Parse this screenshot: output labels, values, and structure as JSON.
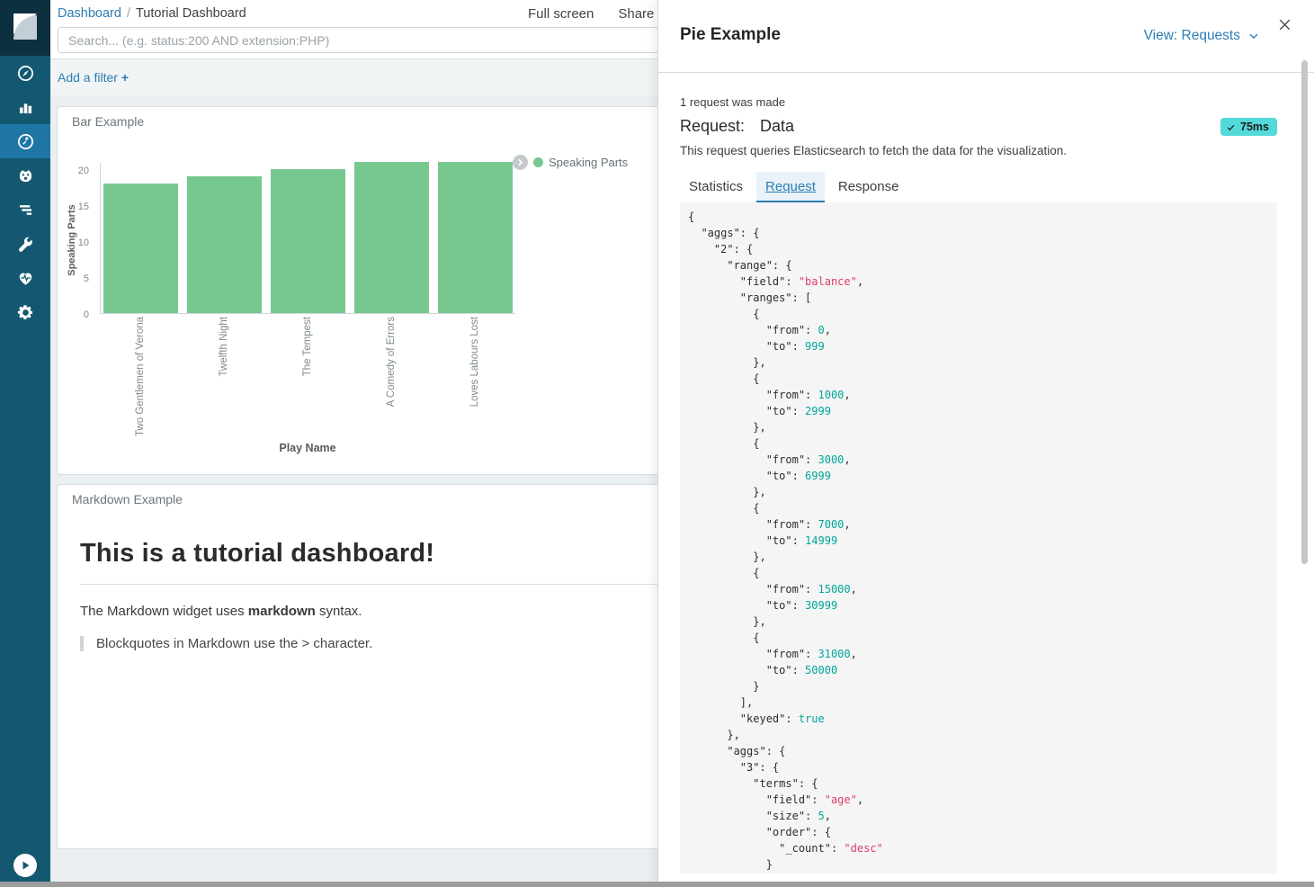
{
  "colors": {
    "accent_blue": "#2d7db3",
    "sidebar_bg": "#135870",
    "sidebar_active_bg": "#1e76a5",
    "bar_green": "#77c88f",
    "badge_teal": "#54d9d9",
    "code_string_pink": "#dd3e67",
    "code_number_teal": "#00a69b"
  },
  "sidebar": {
    "items": [
      {
        "name": "discover",
        "icon": "compass-icon"
      },
      {
        "name": "visualize",
        "icon": "bar-chart-icon"
      },
      {
        "name": "dashboard",
        "icon": "gauge-icon",
        "active": true
      },
      {
        "name": "timelion",
        "icon": "face-icon"
      },
      {
        "name": "logging",
        "icon": "lines-icon"
      },
      {
        "name": "dev-tools",
        "icon": "wrench-icon"
      },
      {
        "name": "monitoring",
        "icon": "heartbeat-icon"
      },
      {
        "name": "management",
        "icon": "gear-icon"
      }
    ],
    "collapse_icon": "play-circle-icon"
  },
  "topbar": {
    "breadcrumb": {
      "link": "Dashboard",
      "separator": "/",
      "current": "Tutorial Dashboard"
    },
    "actions": {
      "fullscreen": "Full screen",
      "share": "Share"
    },
    "search_placeholder": "Search... (e.g. status:200 AND extension:PHP)"
  },
  "filter_bar": {
    "add_filter": "Add a filter",
    "plus": "+"
  },
  "panels": {
    "bar": {
      "title": "Bar Example",
      "legend": {
        "label": "Speaking Parts",
        "color": "#77c88f"
      },
      "chart_data": {
        "type": "bar",
        "categories": [
          "Two Gentlemen of Verona",
          "Twelfth Night",
          "The Tempest",
          "A Comedy of Errors",
          "Loves Labours Lost"
        ],
        "values": [
          18,
          19,
          20,
          21,
          21
        ],
        "series_name": "Speaking Parts",
        "xlabel": "Play Name",
        "ylabel": "Speaking Parts",
        "ylim": [
          0,
          21
        ],
        "yticks": [
          0,
          5,
          10,
          15,
          20
        ],
        "grid": false,
        "legend_position": "right",
        "bar_color": "#77c88f"
      }
    },
    "markdown": {
      "title": "Markdown Example",
      "heading": "This is a tutorial dashboard!",
      "paragraph_prefix": "The Markdown widget uses ",
      "paragraph_bold": "markdown",
      "paragraph_suffix": " syntax.",
      "blockquote": "Blockquotes in Markdown use the > character."
    }
  },
  "flyout": {
    "title": "Pie Example",
    "view_menu": "View: Requests",
    "request_count": "1 request was made",
    "request_label": "Request:",
    "request_name": "Data",
    "duration_badge": "75ms",
    "description": "This request queries Elasticsearch to fetch the data for the visualization.",
    "tabs": [
      "Statistics",
      "Request",
      "Response"
    ],
    "active_tab": "Request",
    "code_lines": [
      [
        [
          "p",
          "{"
        ]
      ],
      [
        [
          "p",
          "  \"aggs\": {"
        ]
      ],
      [
        [
          "p",
          "    \"2\": {"
        ]
      ],
      [
        [
          "p",
          "      \"range\": {"
        ]
      ],
      [
        [
          "p",
          "        \"field\": "
        ],
        [
          "s",
          "\"balance\""
        ],
        [
          "p",
          ","
        ]
      ],
      [
        [
          "p",
          "        \"ranges\": ["
        ]
      ],
      [
        [
          "p",
          "          {"
        ]
      ],
      [
        [
          "p",
          "            \"from\": "
        ],
        [
          "n",
          "0"
        ],
        [
          "p",
          ","
        ]
      ],
      [
        [
          "p",
          "            \"to\": "
        ],
        [
          "n",
          "999"
        ]
      ],
      [
        [
          "p",
          "          },"
        ]
      ],
      [
        [
          "p",
          "          {"
        ]
      ],
      [
        [
          "p",
          "            \"from\": "
        ],
        [
          "n",
          "1000"
        ],
        [
          "p",
          ","
        ]
      ],
      [
        [
          "p",
          "            \"to\": "
        ],
        [
          "n",
          "2999"
        ]
      ],
      [
        [
          "p",
          "          },"
        ]
      ],
      [
        [
          "p",
          "          {"
        ]
      ],
      [
        [
          "p",
          "            \"from\": "
        ],
        [
          "n",
          "3000"
        ],
        [
          "p",
          ","
        ]
      ],
      [
        [
          "p",
          "            \"to\": "
        ],
        [
          "n",
          "6999"
        ]
      ],
      [
        [
          "p",
          "          },"
        ]
      ],
      [
        [
          "p",
          "          {"
        ]
      ],
      [
        [
          "p",
          "            \"from\": "
        ],
        [
          "n",
          "7000"
        ],
        [
          "p",
          ","
        ]
      ],
      [
        [
          "p",
          "            \"to\": "
        ],
        [
          "n",
          "14999"
        ]
      ],
      [
        [
          "p",
          "          },"
        ]
      ],
      [
        [
          "p",
          "          {"
        ]
      ],
      [
        [
          "p",
          "            \"from\": "
        ],
        [
          "n",
          "15000"
        ],
        [
          "p",
          ","
        ]
      ],
      [
        [
          "p",
          "            \"to\": "
        ],
        [
          "n",
          "30999"
        ]
      ],
      [
        [
          "p",
          "          },"
        ]
      ],
      [
        [
          "p",
          "          {"
        ]
      ],
      [
        [
          "p",
          "            \"from\": "
        ],
        [
          "n",
          "31000"
        ],
        [
          "p",
          ","
        ]
      ],
      [
        [
          "p",
          "            \"to\": "
        ],
        [
          "n",
          "50000"
        ]
      ],
      [
        [
          "p",
          "          }"
        ]
      ],
      [
        [
          "p",
          "        ],"
        ]
      ],
      [
        [
          "p",
          "        \"keyed\": "
        ],
        [
          "n",
          "true"
        ]
      ],
      [
        [
          "p",
          "      },"
        ]
      ],
      [
        [
          "p",
          "      \"aggs\": {"
        ]
      ],
      [
        [
          "p",
          "        \"3\": {"
        ]
      ],
      [
        [
          "p",
          "          \"terms\": {"
        ]
      ],
      [
        [
          "p",
          "            \"field\": "
        ],
        [
          "s",
          "\"age\""
        ],
        [
          "p",
          ","
        ]
      ],
      [
        [
          "p",
          "            \"size\": "
        ],
        [
          "n",
          "5"
        ],
        [
          "p",
          ","
        ]
      ],
      [
        [
          "p",
          "            \"order\": {"
        ]
      ],
      [
        [
          "p",
          "              \"_count\": "
        ],
        [
          "s",
          "\"desc\""
        ]
      ],
      [
        [
          "p",
          "            }"
        ]
      ],
      [
        [
          "p",
          "          }"
        ]
      ]
    ]
  }
}
